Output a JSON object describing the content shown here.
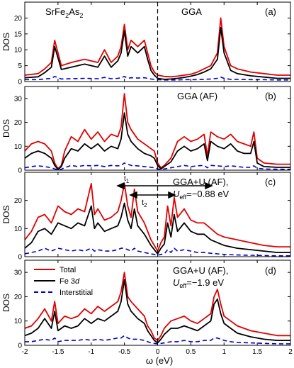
{
  "chart_data": {
    "type": "line",
    "xlabel": "ω (eV)",
    "ylabel": "DOS",
    "xlim": [
      -2,
      2
    ],
    "xticks": [
      "-2",
      "-1.5",
      "-1",
      "-0.5",
      "0",
      "0.5",
      "1",
      "1.5",
      "2"
    ],
    "legend": {
      "placement": "top-left of panel (d)",
      "entries": [
        {
          "name": "Total",
          "color": "#e00000",
          "style": "solid"
        },
        {
          "name": "Fe 3d",
          "color": "#000000",
          "style": "solid"
        },
        {
          "name": "Interstitial",
          "color": "#0000cc",
          "style": "dashed"
        }
      ]
    },
    "vline_x": 0,
    "panels": [
      {
        "id": "a",
        "tag": "(a)",
        "title": "GGA",
        "material": "SrFe2As2",
        "ylim": [
          0,
          25
        ],
        "yticks": [
          "0",
          "5",
          "10",
          "15",
          "20"
        ],
        "x": [
          -2,
          -1.8,
          -1.7,
          -1.6,
          -1.55,
          -1.45,
          -1.3,
          -1.1,
          -0.9,
          -0.8,
          -0.7,
          -0.6,
          -0.55,
          -0.5,
          -0.45,
          -0.4,
          -0.3,
          -0.2,
          -0.15,
          -0.1,
          -0.05,
          0,
          0.1,
          0.2,
          0.3,
          0.4,
          0.5,
          0.6,
          0.7,
          0.8,
          0.9,
          0.95,
          1.0,
          1.1,
          1.2,
          1.4,
          1.6,
          1.8,
          2
        ],
        "series": [
          {
            "name": "Total",
            "values": [
              2,
              2.5,
              4,
              6,
              13,
              5,
              6,
              7,
              6,
              10,
              6,
              8,
              11,
              18,
              10,
              13,
              11,
              13,
              9,
              5,
              3,
              2,
              1.6,
              1.5,
              1.7,
              2,
              2.3,
              3,
              4,
              5,
              9,
              20,
              11,
              5,
              4,
              3,
              2.5,
              2,
              2
            ]
          },
          {
            "name": "Fe 3d",
            "values": [
              1.2,
              1.5,
              2.8,
              4.5,
              11,
              3.8,
              4.5,
              5.5,
              4.5,
              8,
              4.5,
              6.5,
              9,
              16,
              8,
              11,
              9,
              11,
              7,
              3.5,
              2,
              1,
              0.7,
              0.8,
              1,
              1.3,
              1.7,
              2.2,
              3,
              4,
              7,
              17,
              9,
              3.5,
              2.5,
              1.8,
              1.4,
              1,
              1
            ]
          },
          {
            "name": "Interstitial",
            "values": [
              0.6,
              0.6,
              0.8,
              1,
              1.6,
              0.8,
              0.9,
              1,
              0.9,
              1.3,
              0.9,
              1,
              1.2,
              1.6,
              1,
              1.2,
              1.1,
              1.2,
              1,
              0.8,
              0.7,
              0.6,
              0.5,
              0.5,
              0.5,
              0.6,
              0.6,
              0.6,
              0.7,
              0.8,
              1,
              1.4,
              1,
              0.7,
              0.7,
              0.6,
              0.6,
              0.5,
              0.5
            ]
          }
        ]
      },
      {
        "id": "b",
        "tag": "(b)",
        "title": "GGA (AF)",
        "ylim": [
          0,
          35
        ],
        "yticks": [
          "0",
          "10",
          "20",
          "30"
        ],
        "x": [
          -2,
          -1.9,
          -1.8,
          -1.7,
          -1.6,
          -1.55,
          -1.5,
          -1.45,
          -1.4,
          -1.3,
          -1.2,
          -1.1,
          -1.0,
          -0.9,
          -0.8,
          -0.7,
          -0.6,
          -0.55,
          -0.5,
          -0.45,
          -0.4,
          -0.3,
          -0.2,
          -0.1,
          -0.05,
          0,
          0.05,
          0.1,
          0.2,
          0.3,
          0.4,
          0.5,
          0.6,
          0.7,
          0.75,
          0.8,
          0.9,
          1.0,
          1.1,
          1.2,
          1.3,
          1.4,
          1.45,
          1.5,
          1.6,
          1.8,
          2
        ],
        "series": [
          {
            "name": "Total",
            "values": [
              8,
              11,
              12,
              11,
              8,
              3,
              0.5,
              2,
              8,
              14,
              12,
              17,
              13,
              16,
              12,
              15,
              14,
              18,
              32,
              20,
              17,
              13,
              11,
              9,
              8,
              3,
              1,
              2,
              5,
              12,
              14,
              12,
              13,
              15,
              6,
              16,
              14,
              13,
              15,
              12,
              11,
              10,
              16,
              5,
              3,
              2.5,
              2.5
            ]
          },
          {
            "name": "Fe 3d",
            "values": [
              5,
              7,
              8,
              7,
              5,
              2,
              0.3,
              1.5,
              5,
              9,
              8,
              11,
              9,
              11,
              8,
              10,
              9,
              13,
              24,
              15,
              12,
              9,
              7,
              6,
              5,
              2,
              0.5,
              1.5,
              3.5,
              8,
              10,
              8,
              9,
              11,
              4,
              12,
              10,
              9,
              11,
              8,
              7,
              7,
              12,
              3,
              1.5,
              1.2,
              1.2
            ]
          },
          {
            "name": "Interstitial",
            "values": [
              1,
              1.5,
              1.8,
              1.5,
              1,
              0.5,
              0.2,
              0.4,
              1,
              2,
              1.5,
              2,
              1.8,
              2,
              1.5,
              2,
              1.8,
              2,
              3,
              2.5,
              2,
              1.8,
              1.5,
              1.2,
              1,
              0.5,
              0.3,
              0.5,
              1,
              1.5,
              2,
              1.5,
              1.8,
              2,
              1,
              2,
              1.8,
              1.5,
              1.8,
              1.5,
              1.2,
              1.2,
              1.8,
              0.8,
              0.5,
              0.4,
              0.4
            ]
          }
        ]
      },
      {
        "id": "c",
        "tag": "(c)",
        "title": "GGA+U (AF),",
        "subtitle": "U",
        "subtitle_sub": "eff",
        "subtitle_val": "=−0.88 eV",
        "annotations": [
          "t",
          "t"
        ],
        "annotation_subs": [
          "1",
          "2"
        ],
        "ylim": [
          0,
          30
        ],
        "yticks": [
          "0",
          "10",
          "20"
        ],
        "x": [
          -2,
          -1.9,
          -1.8,
          -1.7,
          -1.6,
          -1.5,
          -1.4,
          -1.3,
          -1.2,
          -1.1,
          -1.0,
          -0.95,
          -0.9,
          -0.8,
          -0.7,
          -0.6,
          -0.55,
          -0.5,
          -0.45,
          -0.4,
          -0.35,
          -0.3,
          -0.2,
          -0.1,
          -0.05,
          0,
          0.05,
          0.1,
          0.15,
          0.2,
          0.25,
          0.3,
          0.4,
          0.5,
          0.6,
          0.7,
          0.8,
          0.9,
          1.0,
          1.2,
          1.4,
          1.6,
          1.8,
          2
        ],
        "series": [
          {
            "name": "Total",
            "values": [
              6,
              9,
              14,
              15,
              12,
              18,
              16,
              15,
              17,
              16,
              26,
              15,
              17,
              13,
              14,
              16,
              20,
              26,
              18,
              14,
              24,
              16,
              12,
              6,
              4,
              2,
              5,
              7,
              18,
              11,
              21,
              14,
              17,
              13,
              12,
              12,
              10,
              8,
              7,
              6,
              5,
              4,
              3.5,
              3.5
            ]
          },
          {
            "name": "Fe 3d",
            "values": [
              3,
              5,
              9,
              10,
              8,
              12,
              11,
              10,
              12,
              11,
              18,
              10,
              12,
              9,
              10,
              11,
              14,
              19,
              13,
              10,
              17,
              11,
              8,
              4,
              2.5,
              1,
              3,
              4.5,
              12,
              7,
              15,
              9,
              12,
              9,
              8,
              8,
              6,
              5,
              4,
              3,
              2.5,
              2,
              1.5,
              1.5
            ]
          },
          {
            "name": "Interstitial",
            "values": [
              1,
              1.5,
              2,
              3,
              2,
              3,
              2.5,
              2,
              2.5,
              2,
              3,
              2,
              2.5,
              2,
              2,
              2.5,
              3,
              3,
              2.5,
              2,
              3,
              2,
              1.5,
              1,
              0.8,
              0.5,
              0.8,
              1,
              2.5,
              1.5,
              3,
              2,
              2.5,
              2,
              1.5,
              1.5,
              1.2,
              1,
              0.8,
              0.6,
              0.5,
              0.4,
              0.3,
              0.3
            ]
          }
        ]
      },
      {
        "id": "d",
        "tag": "(d)",
        "title": "GGA+U (AF),",
        "subtitle": "U",
        "subtitle_sub": "eff",
        "subtitle_val": "=−1.9 eV",
        "ylim": [
          0,
          35
        ],
        "yticks": [
          "0",
          "10",
          "20",
          "30"
        ],
        "x": [
          -2,
          -1.9,
          -1.8,
          -1.7,
          -1.6,
          -1.55,
          -1.5,
          -1.4,
          -1.3,
          -1.2,
          -1.1,
          -1.0,
          -0.9,
          -0.8,
          -0.7,
          -0.6,
          -0.55,
          -0.5,
          -0.45,
          -0.4,
          -0.3,
          -0.2,
          -0.15,
          -0.1,
          -0.05,
          0,
          0.05,
          0.1,
          0.2,
          0.3,
          0.4,
          0.5,
          0.6,
          0.7,
          0.8,
          0.85,
          0.9,
          0.95,
          1.0,
          1.1,
          1.2,
          1.4,
          1.6,
          1.8,
          2
        ],
        "series": [
          {
            "name": "Total",
            "values": [
              7,
              8,
              11,
              15,
              10,
              18,
              9,
              12,
              11,
              12,
              15,
              13,
              16,
              14,
              16,
              18,
              22,
              30,
              20,
              18,
              15,
              12,
              8,
              6,
              3,
              2,
              4,
              7,
              10,
              11,
              12,
              10,
              9,
              11,
              13,
              20,
              23,
              17,
              12,
              10,
              8,
              6,
              5,
              4,
              4
            ]
          },
          {
            "name": "Fe 3d",
            "values": [
              4,
              5,
              7,
              11,
              7,
              14,
              6,
              8,
              7,
              8,
              11,
              9,
              11,
              10,
              12,
              14,
              18,
              27,
              17,
              14,
              11,
              9,
              6,
              4,
              2,
              1,
              2.5,
              4.5,
              7,
              7,
              8,
              7,
              6,
              8,
              10,
              17,
              19,
              13,
              9,
              7,
              5,
              3.5,
              2.5,
              2,
              2
            ]
          },
          {
            "name": "Interstitial",
            "values": [
              1.5,
              1.5,
              2,
              2.5,
              2,
              3,
              1.5,
              2,
              2,
              2,
              2.5,
              2,
              2.5,
              2,
              2.5,
              3,
              3,
              4,
              3,
              2.5,
              2.5,
              2,
              1.5,
              1,
              0.8,
              0.6,
              0.8,
              1,
              1.5,
              1.5,
              2,
              1.5,
              1.5,
              2,
              2,
              3,
              3,
              2.5,
              2,
              1.5,
              1.2,
              1,
              0.8,
              0.6,
              0.6
            ]
          }
        ]
      }
    ]
  }
}
